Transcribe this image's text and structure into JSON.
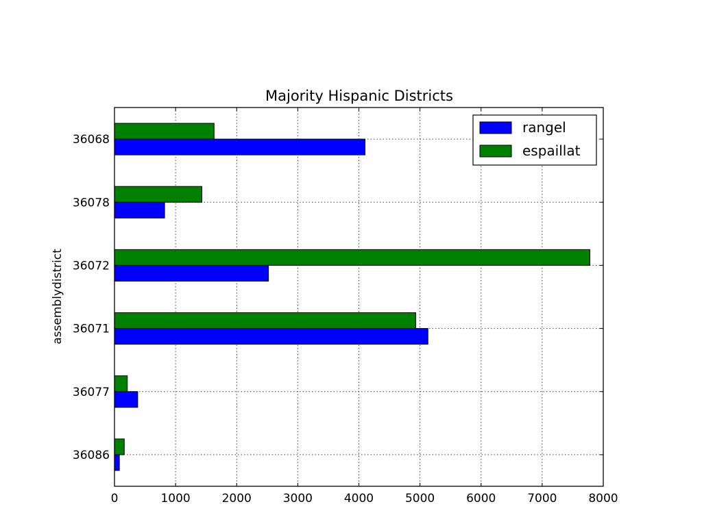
{
  "chart_data": {
    "type": "bar",
    "orientation": "horizontal",
    "title": "Majority Hispanic Districts",
    "xlabel": "",
    "ylabel": "assemblydistrict",
    "xlim": [
      0,
      8000
    ],
    "xticks": [
      "0",
      "1000",
      "2000",
      "3000",
      "4000",
      "5000",
      "6000",
      "7000",
      "8000"
    ],
    "categories": [
      "36086",
      "36077",
      "36071",
      "36072",
      "36078",
      "36068"
    ],
    "series": [
      {
        "name": "rangel",
        "color": "#0000ff",
        "values": [
          80,
          380,
          5130,
          2520,
          820,
          4100
        ]
      },
      {
        "name": "espaillat",
        "color": "#008000",
        "values": [
          160,
          210,
          4930,
          7780,
          1430,
          1630
        ]
      }
    ],
    "grid": true,
    "legend": "top-right"
  }
}
